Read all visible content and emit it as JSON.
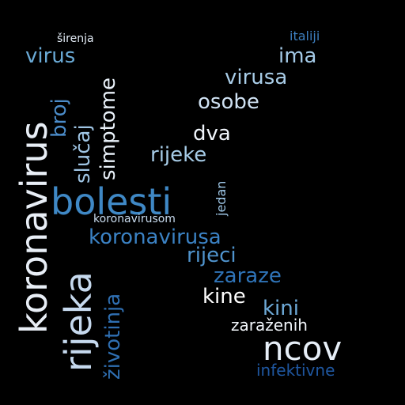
{
  "background": "#000000",
  "words": [
    {
      "text": "koronavirus",
      "color": "#e8eef6",
      "orientation": "vertical"
    },
    {
      "text": "rijeka",
      "color": "#c6d9ee",
      "orientation": "vertical"
    },
    {
      "text": "bolesti",
      "color": "#3f88c5",
      "orientation": "horizontal"
    },
    {
      "text": "ncov",
      "color": "#e6eef7",
      "orientation": "horizontal"
    },
    {
      "text": "koronavirusa",
      "color": "#3b82c4",
      "orientation": "horizontal"
    },
    {
      "text": "virus",
      "color": "#6aaad6",
      "orientation": "horizontal"
    },
    {
      "text": "ima",
      "color": "#a3c9e6",
      "orientation": "horizontal"
    },
    {
      "text": "virusa",
      "color": "#a9cde8",
      "orientation": "horizontal"
    },
    {
      "text": "osobe",
      "color": "#cfe1f2",
      "orientation": "horizontal"
    },
    {
      "text": "dva",
      "color": "#f0f5fb",
      "orientation": "horizontal"
    },
    {
      "text": "rijeke",
      "color": "#a6cbe6",
      "orientation": "horizontal"
    },
    {
      "text": "rijeci",
      "color": "#4f93cc",
      "orientation": "horizontal"
    },
    {
      "text": "zaraze",
      "color": "#2f74b8",
      "orientation": "horizontal"
    },
    {
      "text": "kine",
      "color": "#ffffff",
      "orientation": "horizontal"
    },
    {
      "text": "kini",
      "color": "#6eaad8",
      "orientation": "horizontal"
    },
    {
      "text": "zaraženih",
      "color": "#f2f6fb",
      "orientation": "horizontal"
    },
    {
      "text": "infektivne",
      "color": "#1f57a0",
      "orientation": "horizontal"
    },
    {
      "text": "italiji",
      "color": "#3d7fbf",
      "orientation": "horizontal"
    },
    {
      "text": "širenja",
      "color": "#e3ecf6",
      "orientation": "horizontal"
    },
    {
      "text": "koronavirusom",
      "color": "#c9dcef",
      "orientation": "horizontal"
    },
    {
      "text": "broj",
      "color": "#4b8cc9",
      "orientation": "vertical"
    },
    {
      "text": "slučaj",
      "color": "#9fc5e4",
      "orientation": "vertical"
    },
    {
      "text": "simptome",
      "color": "#e8f0f8",
      "orientation": "vertical"
    },
    {
      "text": "životinja",
      "color": "#2f6fb2",
      "orientation": "vertical"
    },
    {
      "text": "jedan",
      "color": "#9ec6e6",
      "orientation": "vertical"
    }
  ]
}
